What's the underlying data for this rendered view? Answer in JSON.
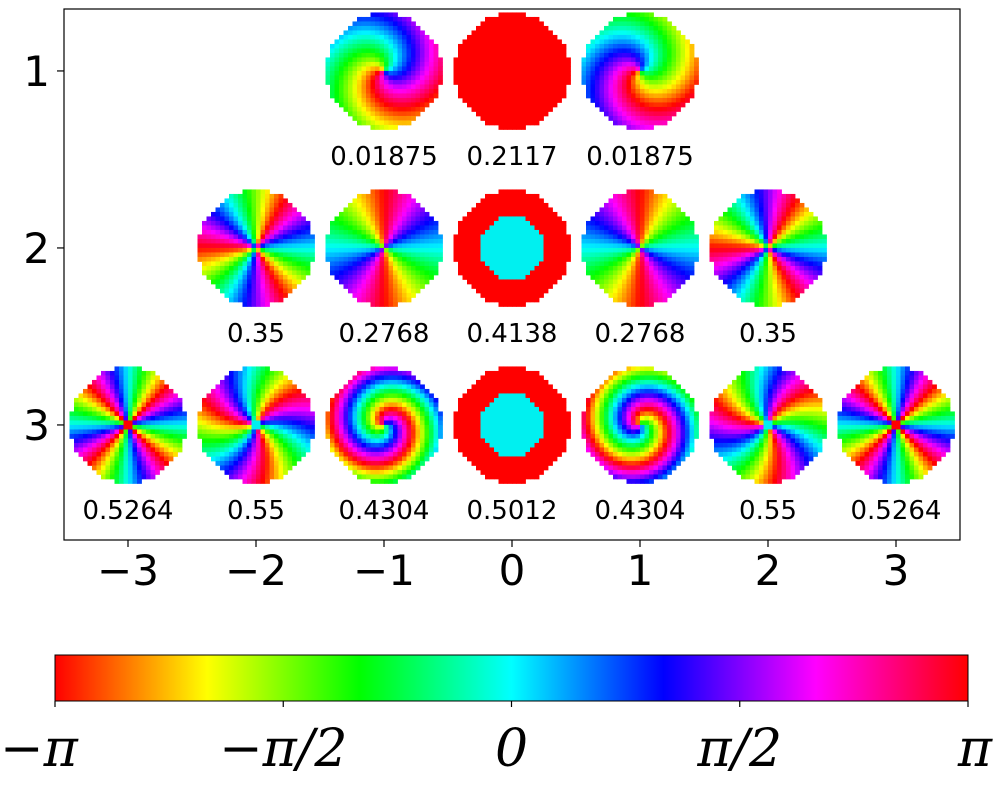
{
  "chart_data": {
    "type": "heatmap",
    "description": "phase-map",
    "xticks": [
      {
        "value": -3,
        "label": "−3"
      },
      {
        "value": -2,
        "label": "−2"
      },
      {
        "value": -1,
        "label": "−1"
      },
      {
        "value": 0,
        "label": "0"
      },
      {
        "value": 1,
        "label": "1"
      },
      {
        "value": 2,
        "label": "2"
      },
      {
        "value": 3,
        "label": "3"
      }
    ],
    "yticks": [
      {
        "value": 1,
        "label": "1"
      },
      {
        "value": 2,
        "label": "2"
      },
      {
        "value": 3,
        "label": "3"
      }
    ],
    "xlim": [
      -3.5,
      3.5
    ],
    "ylim": [
      3.65,
      0.65
    ],
    "cells": [
      {
        "row": 1,
        "col": -1,
        "label": "0.01875",
        "winding": 1,
        "twist": 0.9,
        "core": 0
      },
      {
        "row": 1,
        "col": 0,
        "label": "0.2117",
        "winding": 0,
        "twist": 0,
        "core": 0
      },
      {
        "row": 1,
        "col": 1,
        "label": "0.01875",
        "winding": -1,
        "twist": -0.9,
        "core": 0
      },
      {
        "row": 2,
        "col": -2,
        "label": "0.35",
        "winding": -3,
        "twist": 0,
        "core": 0
      },
      {
        "row": 2,
        "col": -1,
        "label": "0.2768",
        "winding": -2,
        "twist": 0,
        "core": 0
      },
      {
        "row": 2,
        "col": 0,
        "label": "0.4138",
        "winding": 0,
        "twist": 0,
        "core": 0.55
      },
      {
        "row": 2,
        "col": 1,
        "label": "0.2768",
        "winding": 2,
        "twist": 0,
        "core": 0
      },
      {
        "row": 2,
        "col": 2,
        "label": "0.35",
        "winding": 3,
        "twist": 0,
        "core": 0
      },
      {
        "row": 3,
        "col": -3,
        "label": "0.5264",
        "winding": -4,
        "twist": 0,
        "core": 0
      },
      {
        "row": 3,
        "col": -2,
        "label": "0.55",
        "winding": -3,
        "twist": 0.4,
        "core": 0.12
      },
      {
        "row": 3,
        "col": -1,
        "label": "0.4304",
        "winding": -1,
        "twist": 2.2,
        "core": 0.15
      },
      {
        "row": 3,
        "col": 0,
        "label": "0.5012",
        "winding": 0,
        "twist": 0,
        "core": 0.55
      },
      {
        "row": 3,
        "col": 1,
        "label": "0.4304",
        "winding": 1,
        "twist": -2.2,
        "core": 0.15
      },
      {
        "row": 3,
        "col": 2,
        "label": "0.55",
        "winding": 3,
        "twist": -0.4,
        "core": 0.12
      },
      {
        "row": 3,
        "col": 3,
        "label": "0.5264",
        "winding": 4,
        "twist": 0,
        "core": 0
      }
    ],
    "colorbar": {
      "range": [
        -3.14159,
        3.14159
      ],
      "colormap": "hsv",
      "tick_labels": [
        "−π",
        "−π/2",
        "0",
        "π/2",
        "π"
      ]
    },
    "colors": {
      "outer_phase": "#ff0000",
      "core_phase": "#00f0f0"
    }
  }
}
